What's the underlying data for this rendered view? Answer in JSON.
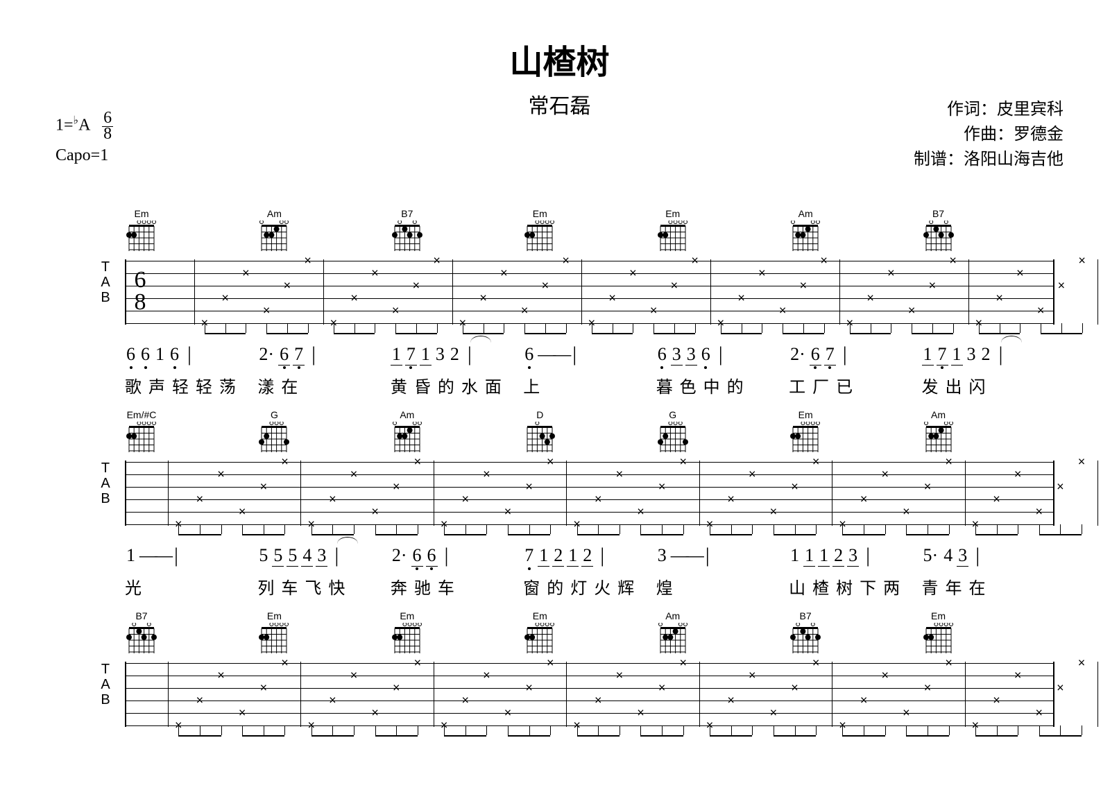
{
  "title": "山楂树",
  "title_fontsize": 48,
  "subtitle": "常石磊",
  "subtitle_fontsize": 30,
  "meta": {
    "key_line": "1=♭A  6/8",
    "key_prefix": "1=",
    "key_flat": "♭",
    "key_letter": "A",
    "time_top": "6",
    "time_bottom": "8",
    "capo": "Capo=1",
    "lyricist_label": "作词：",
    "lyricist": "皮里宾科",
    "composer_label": "作曲：",
    "composer": "罗德金",
    "transcriber_label": "制谱：",
    "transcriber": "洛阳山海吉他"
  },
  "colors": {
    "fg": "#000000",
    "bg": "#ffffff"
  },
  "tab": {
    "strings": 6,
    "tab_clef": "TAB",
    "timesig_top": "6",
    "timesig_bot": "8"
  },
  "systems": [
    {
      "chords": [
        "Em",
        "Am",
        "B7",
        "Em",
        "Em",
        "Am",
        "B7"
      ],
      "jianpu": [
        {
          "notes": [
            "6̣",
            "6̣",
            "1",
            "6̣"
          ],
          "bar": true
        },
        {
          "notes": [
            "2·",
            "6̣",
            "7̣"
          ],
          "underline_groups": [
            [
              1,
              2
            ]
          ],
          "bar": true
        },
        {
          "notes": [
            "1",
            "7̣",
            "1",
            "3",
            "2"
          ],
          "underline_groups": [
            [
              0,
              2
            ]
          ],
          "tie": [
            3,
            4
          ],
          "bar": true
        },
        {
          "notes": [
            "6̣",
            "—",
            "—"
          ],
          "bar": true
        },
        {
          "notes": [
            "6̣",
            "3",
            "3",
            "6̣"
          ],
          "underline_groups": [
            [
              1,
              2
            ]
          ],
          "bar": true
        },
        {
          "notes": [
            "2·",
            "6̣",
            "7̣"
          ],
          "underline_groups": [
            [
              1,
              2
            ]
          ],
          "bar": true
        },
        {
          "notes": [
            "1",
            "7̣",
            "1",
            "3",
            "2"
          ],
          "underline_groups": [
            [
              0,
              2
            ]
          ],
          "tie": [
            3,
            4
          ],
          "bar": true
        }
      ],
      "lyrics": [
        "歌 声 轻 轻 荡",
        "漾 在",
        "黄 昏 的 水 面",
        "上",
        "暮 色 中 的",
        "工  厂 已",
        "发  出  闪"
      ]
    },
    {
      "chords": [
        "Em/#C",
        "G",
        "Am",
        "D",
        "G",
        "Em",
        "Am"
      ],
      "jianpu": [
        {
          "notes": [
            "1",
            "—",
            "—"
          ],
          "bar": true
        },
        {
          "notes": [
            "5",
            "5",
            "5",
            "4",
            "3"
          ],
          "underline_groups": [
            [
              1,
              4
            ]
          ],
          "tie": [
            1,
            2
          ],
          "bar": true
        },
        {
          "notes": [
            "2·",
            "6̣",
            "6̣"
          ],
          "underline_groups": [
            [
              1,
              2
            ]
          ],
          "bar": true
        },
        {
          "notes": [
            "7̣",
            "1",
            "2",
            "1",
            "2"
          ],
          "underline_groups": [
            [
              1,
              4
            ]
          ],
          "bar": true
        },
        {
          "notes": [
            "3",
            "—",
            "—"
          ],
          "bar": true
        },
        {
          "notes": [
            "1",
            "1",
            "1",
            "2",
            "3"
          ],
          "underline_groups": [
            [
              1,
              4
            ]
          ],
          "bar": true
        },
        {
          "notes": [
            "5·",
            "4",
            "3"
          ],
          "underline_groups": [
            [
              2,
              2
            ]
          ],
          "bar": true
        }
      ],
      "lyrics": [
        "光",
        "列 车 飞 快",
        "奔  驰 车",
        "窗 的 灯 火 辉",
        "煌",
        "山 楂 树 下 两",
        "青  年 在"
      ]
    },
    {
      "chords": [
        "B7",
        "Em",
        "Em",
        "Em",
        "Am",
        "B7",
        "Em"
      ],
      "jianpu": [],
      "lyrics": []
    }
  ],
  "strum_pattern": {
    "description": "arpeggio with x-marks on tab, 6/8 pattern",
    "x_positions_per_measure": [
      {
        "string": 5,
        "t": 0.08
      },
      {
        "string": 3,
        "t": 0.24
      },
      {
        "string": 1,
        "t": 0.4
      },
      {
        "string": 4,
        "t": 0.56
      },
      {
        "string": 2,
        "t": 0.72
      },
      {
        "string": 0,
        "t": 0.88
      }
    ]
  }
}
